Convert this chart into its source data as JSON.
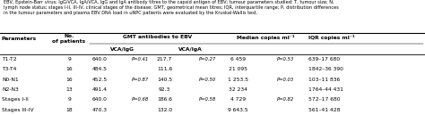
{
  "caption": "EBV, Epstein-Barr virus; IgG/VCA, IgA/VCA, IgG and IgA antibody titres to the capsid antigen of EBV; tumour parameters studied: T, tumour size; N,\nlymph node status; stages I-II, III-IV, clinical stages of the disease; GMT, geometrical mean titres; IQR, interquartile range; P, distribution differences\nin the tumour parameters and plasma EBV DNA load in uNPC patients were evaluated by the Kruskal-Wallis test.",
  "rows": [
    [
      "T1-T2",
      "9",
      "640.0",
      "P=0.41",
      "217.7",
      "P=0.27",
      "6 459",
      "P=0.53",
      "639–17 680"
    ],
    [
      "T3-T4",
      "16",
      "484.5",
      "",
      "111.6",
      "",
      "21 095",
      "",
      "1842–36 390"
    ],
    [
      "N0-N1",
      "16",
      "452.5",
      "P=0.87",
      "140.5",
      "P=0.50",
      "1 253.5",
      "P=0.03",
      "103–11 836"
    ],
    [
      "N2-N3",
      "13",
      "491.4",
      "",
      "92.3",
      "",
      "32 234",
      "",
      "1764–44 431"
    ],
    [
      "Stages I-II",
      "9",
      "640.0",
      "P=0.68",
      "186.6",
      "P=0.58",
      "4 729",
      "P=0.82",
      "572–17 680"
    ],
    [
      "Stages III-IV",
      "18",
      "470.3",
      "",
      "132.0",
      "",
      "9 643.5",
      "",
      "561–41 428"
    ]
  ],
  "background": "#ffffff",
  "text_color": "#000000"
}
